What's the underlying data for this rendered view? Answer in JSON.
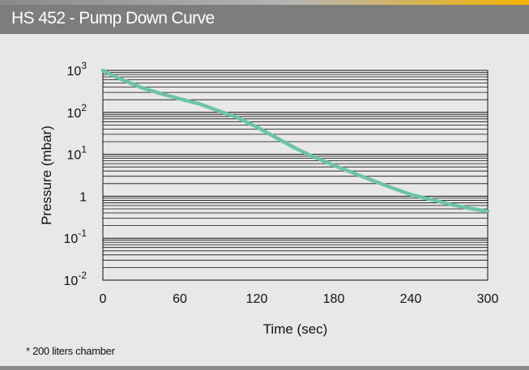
{
  "header": {
    "title": "HS 452 - Pump Down Curve"
  },
  "footnote": "* 200 liters chamber",
  "chart_data": {
    "type": "line",
    "title": "HS 452 - Pump Down Curve",
    "xlabel": "Time (sec)",
    "ylabel": "Pressure (mbar)",
    "xlim": [
      0,
      300
    ],
    "ylim": [
      0.01,
      1000
    ],
    "y_scale": "log",
    "grid": true,
    "x_ticks": [
      "0",
      "60",
      "120",
      "180",
      "240",
      "300"
    ],
    "y_ticks": [
      {
        "base": "10",
        "exp": "-2"
      },
      {
        "base": "10",
        "exp": "-1"
      },
      {
        "base": "1",
        "exp": ""
      },
      {
        "base": "10",
        "exp": "1"
      },
      {
        "base": "10",
        "exp": "2"
      },
      {
        "base": "10",
        "exp": "3"
      }
    ],
    "line_color": "#6cc4a4",
    "series": [
      {
        "x": [
          0,
          10,
          20,
          30,
          45,
          60,
          75,
          90,
          105,
          120,
          135,
          150,
          165,
          180,
          195,
          210,
          225,
          240,
          255,
          270,
          285,
          300
        ],
        "values": [
          1000,
          700,
          520,
          390,
          280,
          210,
          160,
          110,
          75,
          45,
          25,
          14,
          8.5,
          5.5,
          3.6,
          2.4,
          1.6,
          1.1,
          0.85,
          0.65,
          0.52,
          0.44
        ]
      }
    ]
  }
}
